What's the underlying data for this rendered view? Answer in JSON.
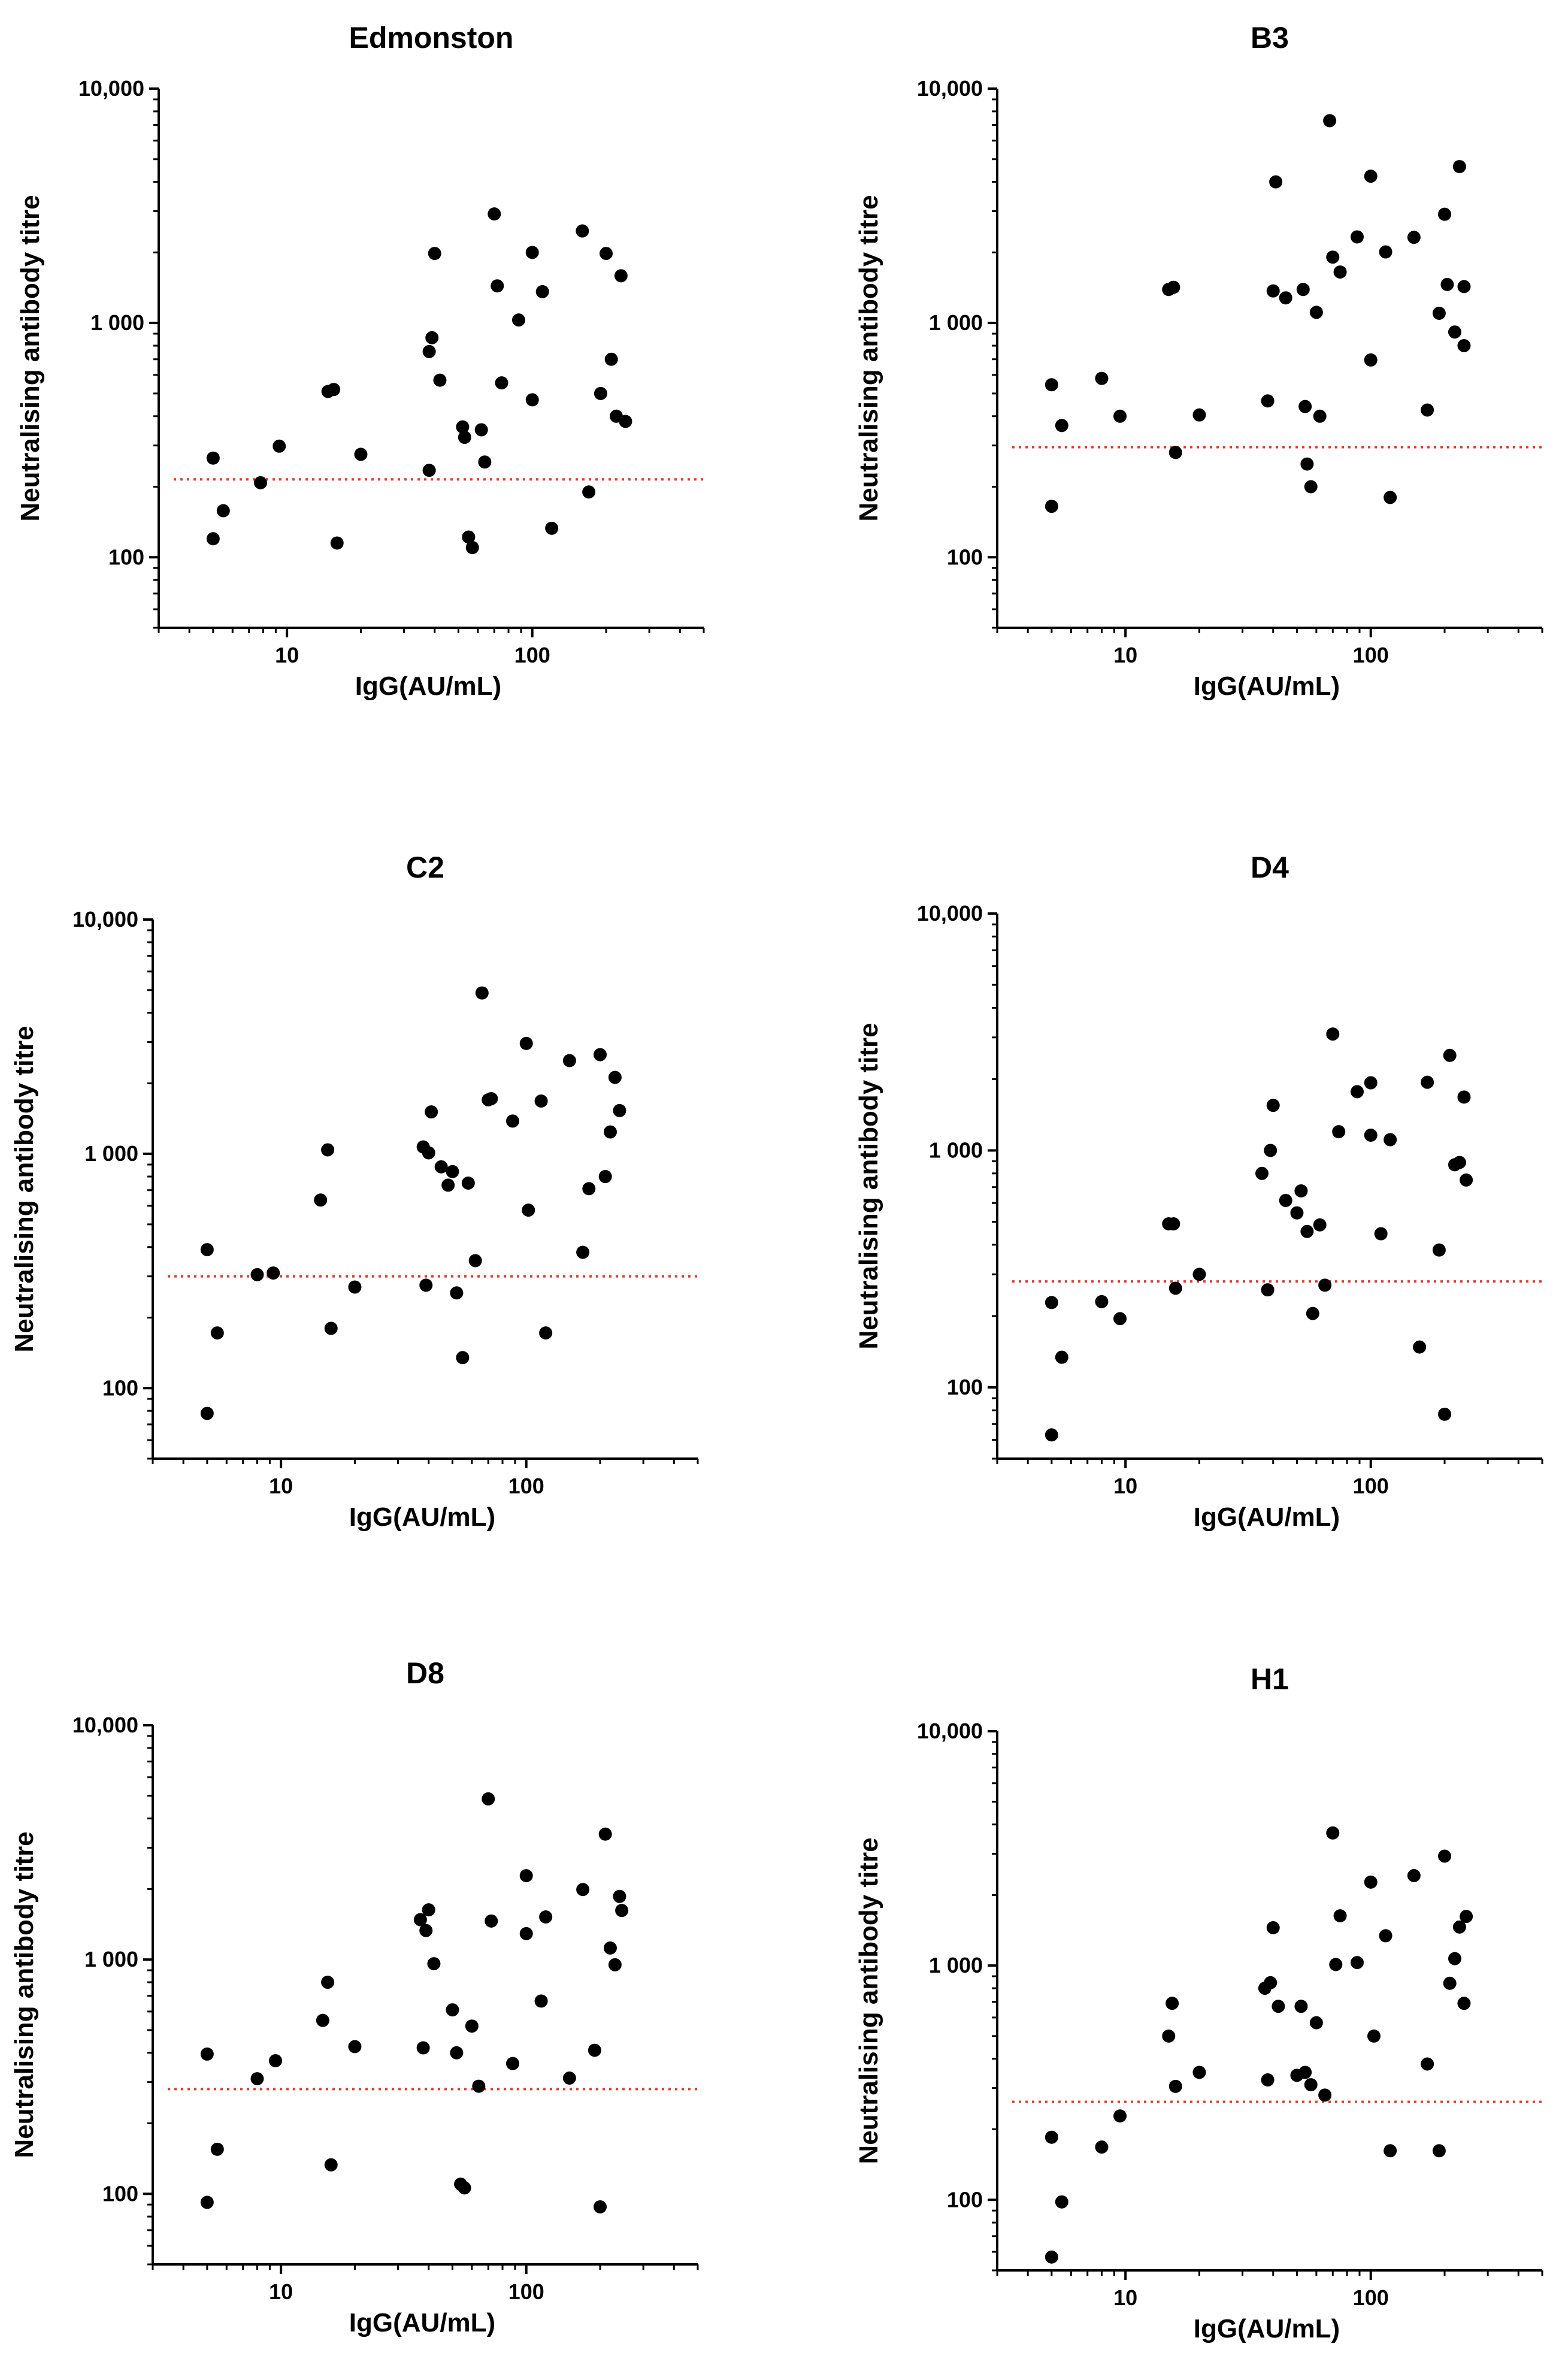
{
  "chart_data": [
    {
      "type": "scatter",
      "title": "Edmonston",
      "xlabel": "IgG(AU/mL)",
      "ylabel": "Neutralising antibody titre",
      "xscale": "log",
      "yscale": "log",
      "xlim": [
        3,
        500
      ],
      "ylim": [
        50,
        10000
      ],
      "xticks": [
        10,
        100
      ],
      "xtick_labels": [
        "10",
        "100"
      ],
      "yticks": [
        100,
        1000,
        10000
      ],
      "ytick_labels": [
        "100",
        "1 000",
        "10,000"
      ],
      "threshold": 215,
      "threshold_color": "#e23a2e",
      "x": [
        5,
        5,
        5.5,
        7.8,
        9.3,
        14.7,
        15.5,
        16,
        20,
        38,
        39,
        40,
        42,
        38,
        52,
        53,
        55,
        57,
        62,
        64,
        70,
        72,
        75,
        88,
        100,
        100,
        110,
        120,
        160,
        170,
        200,
        210,
        220,
        230,
        240,
        190
      ],
      "y": [
        265,
        120,
        158,
        208,
        298,
        510,
        520,
        115,
        275,
        755,
        865,
        1980,
        570,
        235,
        360,
        325,
        122,
        110,
        350,
        255,
        2920,
        1440,
        555,
        1030,
        2000,
        470,
        1360,
        133,
        2470,
        190,
        1980,
        700,
        400,
        1590,
        380,
        500
      ]
    },
    {
      "type": "scatter",
      "title": "B3",
      "xlabel": "IgG(AU/mL)",
      "ylabel": "Neutralising antibody titre",
      "xscale": "log",
      "yscale": "log",
      "xlim": [
        3,
        500
      ],
      "ylim": [
        50,
        10000
      ],
      "xticks": [
        10,
        100
      ],
      "xtick_labels": [
        "10",
        "100"
      ],
      "yticks": [
        100,
        1000,
        10000
      ],
      "ytick_labels": [
        "100",
        "1 000",
        "10,000"
      ],
      "threshold": 295,
      "threshold_color": "#e23a2e",
      "x": [
        5,
        5,
        5.5,
        8,
        9.5,
        15,
        15.7,
        16,
        20,
        38,
        40,
        41,
        45,
        53,
        54,
        55,
        57,
        60,
        62,
        68,
        70,
        75,
        88,
        100,
        100,
        115,
        120,
        150,
        170,
        190,
        200,
        205,
        220,
        230,
        240,
        240
      ],
      "y": [
        165,
        545,
        365,
        580,
        400,
        1390,
        1420,
        280,
        405,
        465,
        1370,
        4000,
        1280,
        1390,
        440,
        250,
        200,
        1110,
        400,
        7300,
        1910,
        1650,
        2330,
        4230,
        695,
        2010,
        180,
        2320,
        425,
        1100,
        2910,
        1460,
        915,
        4650,
        800,
        1430
      ]
    },
    {
      "type": "scatter",
      "title": "C2",
      "xlabel": "IgG(AU/mL)",
      "ylabel": "Neutralising antibody titre",
      "xscale": "log",
      "yscale": "log",
      "xlim": [
        3,
        500
      ],
      "ylim": [
        50,
        10000
      ],
      "xticks": [
        10,
        100
      ],
      "xtick_labels": [
        "10",
        "100"
      ],
      "yticks": [
        100,
        1000,
        10000
      ],
      "ytick_labels": [
        "100",
        "1 000",
        "10,000"
      ],
      "threshold": 300,
      "threshold_color": "#e23a2e",
      "x": [
        5,
        5,
        5.5,
        8,
        9.3,
        14.5,
        15.5,
        16,
        20,
        38,
        39,
        40,
        41,
        45,
        48,
        50,
        52,
        55,
        58,
        62,
        66,
        70,
        72,
        88,
        100,
        102,
        115,
        120,
        150,
        170,
        180,
        200,
        210,
        220,
        230,
        240
      ],
      "y": [
        78,
        390,
        172,
        305,
        310,
        635,
        1040,
        180,
        270,
        1070,
        275,
        1010,
        1510,
        880,
        735,
        840,
        255,
        135,
        750,
        350,
        4860,
        1700,
        1720,
        1380,
        2960,
        575,
        1680,
        172,
        2500,
        380,
        710,
        2650,
        800,
        1240,
        2120,
        1530
      ]
    },
    {
      "type": "scatter",
      "title": "D4",
      "xlabel": "IgG(AU/mL)",
      "ylabel": "Neutralising antibody titre",
      "xscale": "log",
      "yscale": "log",
      "xlim": [
        3,
        500
      ],
      "ylim": [
        50,
        10000
      ],
      "xticks": [
        10,
        100
      ],
      "xtick_labels": [
        "10",
        "100"
      ],
      "yticks": [
        100,
        1000,
        10000
      ],
      "ytick_labels": [
        "100",
        "1 000",
        "10,000"
      ],
      "threshold": 280,
      "threshold_color": "#e23a2e",
      "x": [
        5,
        5,
        5.5,
        8,
        9.5,
        15,
        15.7,
        16,
        20,
        36,
        38,
        39,
        40,
        45,
        50,
        52,
        55,
        58,
        62,
        65,
        70,
        74,
        88,
        100,
        100,
        110,
        120,
        158,
        170,
        190,
        200,
        210,
        220,
        230,
        240,
        245
      ],
      "y": [
        63,
        228,
        134,
        230,
        195,
        490,
        490,
        262,
        300,
        800,
        258,
        1000,
        1550,
        615,
        545,
        675,
        455,
        205,
        485,
        270,
        3100,
        1200,
        1770,
        1160,
        1930,
        445,
        1110,
        148,
        1940,
        380,
        77,
        2520,
        870,
        890,
        1680,
        750
      ]
    },
    {
      "type": "scatter",
      "title": "D8",
      "xlabel": "IgG(AU/mL)",
      "ylabel": "Neutralising antibody titre",
      "xscale": "log",
      "yscale": "log",
      "xlim": [
        3,
        500
      ],
      "ylim": [
        50,
        10000
      ],
      "xticks": [
        10,
        100
      ],
      "xtick_labels": [
        "10",
        "100"
      ],
      "yticks": [
        100,
        1000,
        10000
      ],
      "ytick_labels": [
        "100",
        "1 000",
        "10,000"
      ],
      "threshold": 280,
      "threshold_color": "#e23a2e",
      "x": [
        5,
        5,
        5.5,
        8,
        9.5,
        14.8,
        15.5,
        16,
        20,
        37,
        38,
        39,
        40,
        42,
        50,
        52,
        54,
        56,
        60,
        64,
        70,
        72,
        88,
        100,
        100,
        115,
        120,
        150,
        170,
        190,
        200,
        210,
        220,
        230,
        240,
        245
      ],
      "y": [
        92,
        395,
        155,
        310,
        370,
        550,
        800,
        133,
        425,
        1480,
        420,
        1330,
        1630,
        960,
        610,
        400,
        110,
        106,
        520,
        288,
        4850,
        1460,
        360,
        1290,
        2280,
        665,
        1520,
        312,
        1990,
        410,
        88,
        3430,
        1120,
        950,
        1860,
        1620
      ]
    },
    {
      "type": "scatter",
      "title": "H1",
      "xlabel": "IgG(AU/mL)",
      "ylabel": "Neutralising antibody titre",
      "xscale": "log",
      "yscale": "log",
      "xlim": [
        3,
        500
      ],
      "ylim": [
        50,
        10000
      ],
      "xticks": [
        10,
        100
      ],
      "xtick_labels": [
        "10",
        "100"
      ],
      "yticks": [
        100,
        1000,
        10000
      ],
      "ytick_labels": [
        "100",
        "1 000",
        "10,000"
      ],
      "threshold": 262,
      "threshold_color": "#e23a2e",
      "x": [
        5,
        5,
        5.5,
        8,
        9.5,
        15,
        15.5,
        16,
        20,
        37,
        38,
        39,
        40,
        42,
        50,
        52,
        54,
        57,
        60,
        65,
        70,
        72,
        75,
        88,
        100,
        103,
        115,
        120,
        150,
        170,
        190,
        200,
        210,
        220,
        230,
        240,
        245
      ],
      "y": [
        57,
        185,
        98,
        168,
        228,
        500,
        690,
        305,
        350,
        800,
        325,
        845,
        1450,
        670,
        340,
        670,
        350,
        310,
        570,
        280,
        3680,
        1010,
        1630,
        1030,
        2270,
        500,
        1340,
        162,
        2420,
        380,
        162,
        2930,
        840,
        1070,
        1460,
        690,
        1620
      ]
    }
  ]
}
